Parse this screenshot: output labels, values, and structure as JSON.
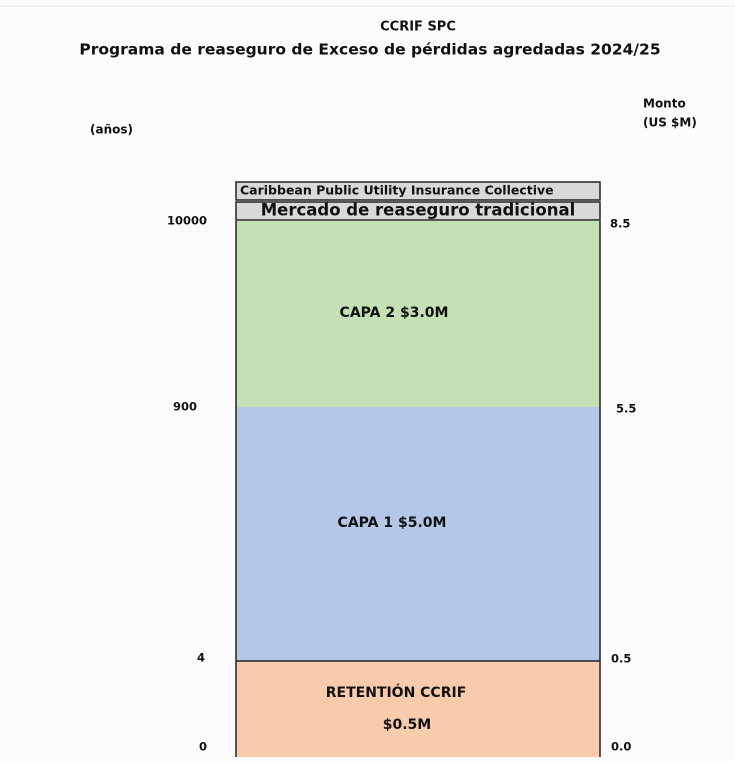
{
  "header": {
    "title": "CCRIF SPC",
    "subtitle": "Programa de reaseguro de Exceso de pérdidas agredadas 2024/25"
  },
  "left_axis": {
    "label": "(años)",
    "ticks": [
      "10000",
      "900",
      "4",
      "0"
    ]
  },
  "right_axis": {
    "label_lines": [
      "Monto",
      "(US $M)"
    ],
    "ticks": [
      "8.5",
      "5.5",
      "0.5",
      "0.0"
    ]
  },
  "layers": [
    {
      "label": "Caribbean Public Utility Insurance Collective"
    },
    {
      "label": "Mercado de reaseguro tradicional"
    },
    {
      "label": "CAPA 2 $3.0M"
    },
    {
      "label": "CAPA 1 $5.0M"
    },
    {
      "label_lines": [
        "RETENTIÓN CCRIF",
        "$0.5M"
      ]
    }
  ]
}
